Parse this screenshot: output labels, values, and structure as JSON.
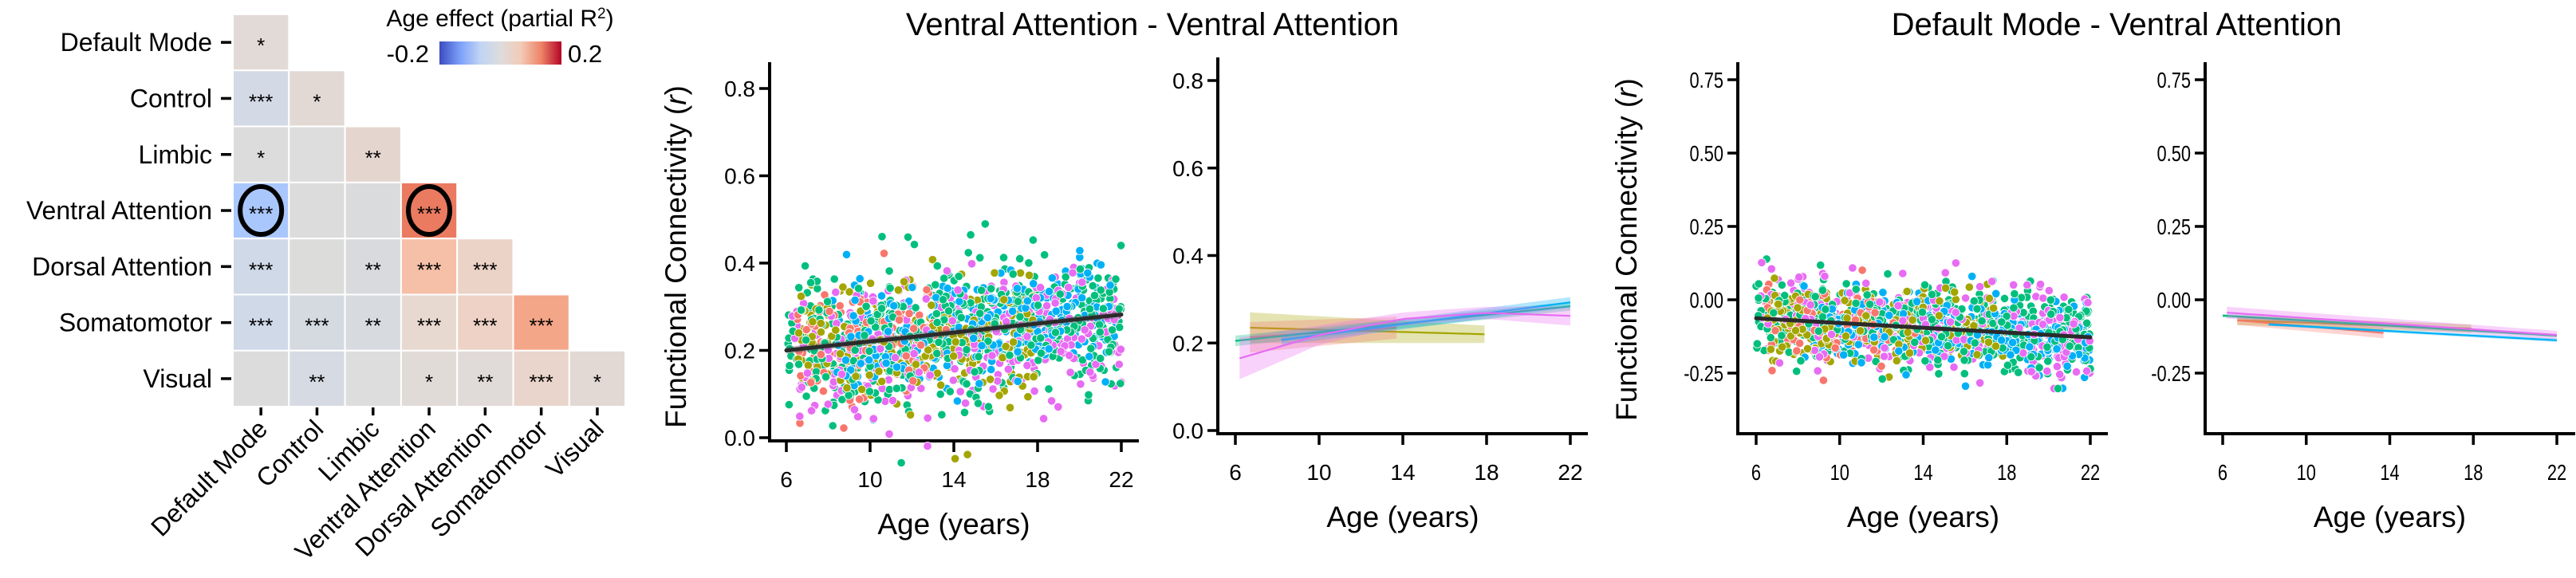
{
  "chart_data": [
    {
      "type": "heatmap",
      "title": "",
      "networks": [
        "Default Mode",
        "Control",
        "Limbic",
        "Ventral Attention",
        "Dorsal Attention",
        "Somatomotor",
        "Visual"
      ],
      "row_labels": [
        "Default Mode",
        "Control",
        "Limbic",
        "Ventral Attention",
        "Dorsal Attention",
        "Somatomotor",
        "Visual"
      ],
      "col_labels": [
        "Default Mode",
        "Control",
        "Limbic",
        "Ventral Attention",
        "Dorsal Attention",
        "Somatomotor",
        "Visual"
      ],
      "layout": "lower-triangle",
      "colorbar": {
        "title": "Age effect (partial R",
        "title_superscript": "2",
        "title_close": ")",
        "min_label": "-0.2",
        "max_label": "0.2",
        "range": [
          -0.2,
          0.2
        ],
        "colormap": "coolwarm",
        "stops": [
          "#3b4cc0",
          "#7b9ff9",
          "#c0d4f5",
          "#dddcdc",
          "#f2cbb7",
          "#ee8468",
          "#b40426"
        ]
      },
      "cells": [
        [
          {
            "value": 0.015,
            "color": "#e2dad6",
            "sig": "*"
          }
        ],
        [
          {
            "value": -0.02,
            "color": "#d3dae6",
            "sig": "***"
          },
          {
            "value": 0.012,
            "color": "#e2d9d4",
            "sig": "*"
          }
        ],
        [
          {
            "value": 0.0,
            "color": "#dcdcdc",
            "sig": "*"
          },
          {
            "value": 0.0,
            "color": "#dcdddc",
            "sig": ""
          },
          {
            "value": 0.02,
            "color": "#e4d6ce",
            "sig": "**"
          }
        ],
        [
          {
            "value": -0.1,
            "color": "#aac7fd",
            "sig": "***",
            "circled": true
          },
          {
            "value": 0.0,
            "color": "#dcdcdc",
            "sig": ""
          },
          {
            "value": -0.003,
            "color": "#dadbdd",
            "sig": ""
          },
          {
            "value": 0.13,
            "color": "#ea7b61",
            "sig": "***",
            "circled": true
          }
        ],
        [
          {
            "value": -0.025,
            "color": "#d0d9e7",
            "sig": "***"
          },
          {
            "value": 0.0,
            "color": "#dcdddb",
            "sig": ""
          },
          {
            "value": -0.008,
            "color": "#d9dadd",
            "sig": "**"
          },
          {
            "value": 0.06,
            "color": "#f5c0a7",
            "sig": "***"
          },
          {
            "value": 0.03,
            "color": "#ecd3c7",
            "sig": "***"
          }
        ],
        [
          {
            "value": -0.028,
            "color": "#cfd9e8",
            "sig": "***"
          },
          {
            "value": -0.014,
            "color": "#d5dae1",
            "sig": "***"
          },
          {
            "value": -0.01,
            "color": "#d7dadf",
            "sig": "**"
          },
          {
            "value": 0.018,
            "color": "#e7d8d0",
            "sig": "***"
          },
          {
            "value": 0.03,
            "color": "#edd2c5",
            "sig": "***"
          },
          {
            "value": 0.09,
            "color": "#f4a688",
            "sig": "***"
          }
        ],
        [
          {
            "value": 0.0,
            "color": "#dcdcdc",
            "sig": ""
          },
          {
            "value": -0.012,
            "color": "#d6dae2",
            "sig": "**"
          },
          {
            "value": 0.0,
            "color": "#dcdddc",
            "sig": ""
          },
          {
            "value": 0.01,
            "color": "#e1dbd7",
            "sig": "*"
          },
          {
            "value": 0.01,
            "color": "#e0dad8",
            "sig": "**"
          },
          {
            "value": 0.025,
            "color": "#e9d5cb",
            "sig": "***"
          },
          {
            "value": 0.012,
            "color": "#e2d9d4",
            "sig": "*"
          }
        ]
      ]
    },
    {
      "type": "scatter",
      "panel_title": "Ventral Attention - Ventral Attention",
      "xlabel": "Age (years)",
      "ylabel": "Functional Connectivity (",
      "ylabel_italic": "r",
      "ylabel_close": ")",
      "xlim": [
        5.2,
        22.9
      ],
      "ylim": [
        0.0,
        0.8
      ],
      "xticks": [
        6,
        10,
        14,
        18,
        22
      ],
      "xtick_labels": [
        "6",
        "10",
        "14",
        "18",
        "22"
      ],
      "yticks": [
        0.0,
        0.2,
        0.4,
        0.6,
        0.8
      ],
      "ytick_labels": [
        "0.0",
        "0.2",
        "0.4",
        "0.6",
        "0.8"
      ],
      "grid": false,
      "fit": {
        "x": [
          6,
          22
        ],
        "y": [
          0.2,
          0.282
        ],
        "ci_halfwidth": 0.008,
        "color": "#2b2b2b"
      },
      "point_groups": [
        {
          "color": "#F8766D",
          "n": 120,
          "age_range": [
            6.5,
            13.7
          ],
          "intercept_at_6": 0.21,
          "slope_per_year": 0.004,
          "sd": 0.065
        },
        {
          "color": "#A3A500",
          "n": 260,
          "age_range": [
            6.5,
            17.9
          ],
          "intercept_at_6": 0.235,
          "slope_per_year": -0.0013,
          "sd": 0.065
        },
        {
          "color": "#00BF7D",
          "n": 520,
          "age_range": [
            6.0,
            22.0
          ],
          "intercept_at_6": 0.205,
          "slope_per_year": 0.0049,
          "sd": 0.075
        },
        {
          "color": "#00B0F6",
          "n": 330,
          "age_range": [
            8.2,
            22.0
          ],
          "intercept_at_6": 0.197,
          "slope_per_year": 0.0058,
          "sd": 0.06
        },
        {
          "color": "#E76BF3",
          "n": 300,
          "age_range": [
            6.2,
            22.0
          ],
          "intercept_at_6": 0.18,
          "slope_per_year": 0.0052,
          "sd": 0.075
        }
      ]
    },
    {
      "type": "line",
      "panel_title": "",
      "xlabel": "Age (years)",
      "ylabel": "",
      "xlim": [
        5.0,
        22.8
      ],
      "ylim": [
        0.0,
        0.8
      ],
      "xticks": [
        6,
        10,
        14,
        18,
        22
      ],
      "xtick_labels": [
        "6",
        "10",
        "14",
        "18",
        "22"
      ],
      "yticks": [
        0.0,
        0.2,
        0.4,
        0.6,
        0.8
      ],
      "ytick_labels": [
        "0.0",
        "0.2",
        "0.4",
        "0.6",
        "0.8"
      ],
      "grid": false,
      "series": [
        {
          "color": "#A3A500",
          "x": [
            6.7,
            17.9
          ],
          "y": [
            0.235,
            0.22
          ],
          "ci_halfwidth": [
            0.035,
            0.02
          ]
        },
        {
          "color": "#F8766D",
          "x": [
            6.7,
            13.7
          ],
          "y": [
            0.213,
            0.235
          ],
          "ci_halfwidth": [
            0.035,
            0.025
          ]
        },
        {
          "color": "#00BF7D",
          "x": [
            6.0,
            22.0
          ],
          "y": [
            0.205,
            0.284
          ],
          "ci_halfwidth": [
            0.012,
            0.01
          ]
        },
        {
          "color": "#00B0F6",
          "x": [
            8.2,
            22.0
          ],
          "y": [
            0.207,
            0.293
          ],
          "ci_halfwidth": [
            0.012,
            0.012
          ]
        },
        {
          "color": "#E76BF3",
          "x": [
            6.2,
            10.0,
            14.0,
            18.0,
            22.0
          ],
          "y": [
            0.165,
            0.218,
            0.255,
            0.269,
            0.262
          ],
          "ci_halfwidth": [
            0.048,
            0.022,
            0.015,
            0.014,
            0.022
          ]
        }
      ]
    },
    {
      "type": "scatter",
      "panel_title": "Default Mode - Ventral Attention",
      "xlabel": "Age (years)",
      "ylabel": "Functional Connectivity (",
      "ylabel_italic": "r",
      "ylabel_close": ")",
      "xlim": [
        5.2,
        23.0
      ],
      "ylim": [
        -0.46,
        0.82
      ],
      "xticks": [
        6,
        10,
        14,
        18,
        22
      ],
      "xtick_labels": [
        "6",
        "10",
        "14",
        "18",
        "22"
      ],
      "yticks": [
        -0.25,
        0.0,
        0.25,
        0.5,
        0.75
      ],
      "ytick_labels": [
        "-0.25",
        "0.00",
        "0.25",
        "0.50",
        "0.75"
      ],
      "grid": false,
      "fit": {
        "x": [
          6,
          22
        ],
        "y": [
          -0.063,
          -0.128
        ],
        "ci_halfwidth": 0.006,
        "color": "#2b2b2b"
      },
      "point_groups": [
        {
          "color": "#F8766D",
          "n": 110,
          "age_range": [
            6.5,
            13.7
          ],
          "intercept_at_6": -0.07,
          "slope_per_year": -0.006,
          "sd": 0.07
        },
        {
          "color": "#A3A500",
          "n": 260,
          "age_range": [
            6.5,
            17.9
          ],
          "intercept_at_6": -0.07,
          "slope_per_year": -0.0025,
          "sd": 0.06
        },
        {
          "color": "#00BF7D",
          "n": 500,
          "age_range": [
            6.0,
            22.0
          ],
          "intercept_at_6": -0.054,
          "slope_per_year": -0.0042,
          "sd": 0.07
        },
        {
          "color": "#00B0F6",
          "n": 330,
          "age_range": [
            8.2,
            22.0
          ],
          "intercept_at_6": -0.075,
          "slope_per_year": -0.0039,
          "sd": 0.06
        },
        {
          "color": "#E76BF3",
          "n": 300,
          "age_range": [
            6.2,
            22.0
          ],
          "intercept_at_6": -0.044,
          "slope_per_year": -0.0048,
          "sd": 0.075
        }
      ]
    },
    {
      "type": "line",
      "panel_title": "",
      "xlabel": "Age (years)",
      "ylabel": "",
      "xlim": [
        5.2,
        23.0
      ],
      "ylim": [
        -0.46,
        0.82
      ],
      "xticks": [
        6,
        10,
        14,
        18,
        22
      ],
      "xtick_labels": [
        "6",
        "10",
        "14",
        "18",
        "22"
      ],
      "yticks": [
        -0.25,
        0.0,
        0.25,
        0.5,
        0.75
      ],
      "ytick_labels": [
        "-0.25",
        "0.00",
        "0.25",
        "0.50",
        "0.75"
      ],
      "grid": false,
      "series": [
        {
          "color": "#A3A500",
          "x": [
            6.7,
            17.9
          ],
          "y": [
            -0.07,
            -0.098
          ],
          "ci_halfwidth": [
            0.016,
            0.014
          ]
        },
        {
          "color": "#F8766D",
          "x": [
            6.7,
            13.7
          ],
          "y": [
            -0.07,
            -0.113
          ],
          "ci_halfwidth": [
            0.016,
            0.018
          ]
        },
        {
          "color": "#00BF7D",
          "x": [
            6.0,
            22.0
          ],
          "y": [
            -0.054,
            -0.122
          ],
          "ci_halfwidth": [
            0.006,
            0.006
          ]
        },
        {
          "color": "#00B0F6",
          "x": [
            8.2,
            22.0
          ],
          "y": [
            -0.084,
            -0.138
          ],
          "ci_halfwidth": [
            0.005,
            0.006
          ]
        },
        {
          "color": "#E76BF3",
          "x": [
            6.2,
            22.0
          ],
          "y": [
            -0.044,
            -0.12
          ],
          "ci_halfwidth": [
            0.02,
            0.014
          ]
        }
      ]
    }
  ]
}
